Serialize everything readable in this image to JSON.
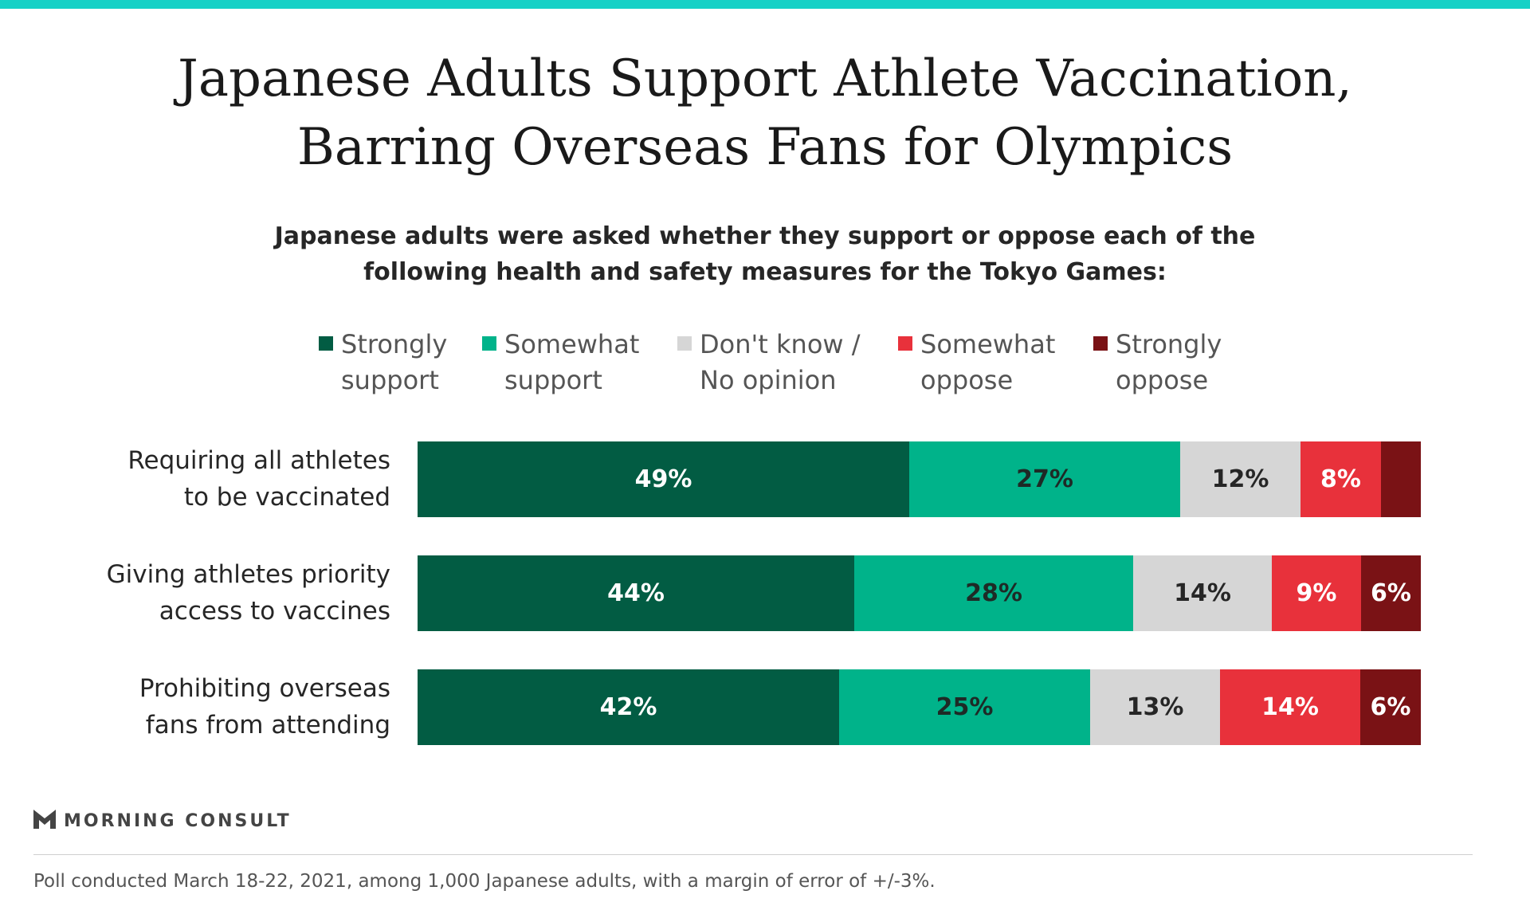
{
  "colors": {
    "accent_rule": "#17d1c6",
    "strongly_support": "#025c43",
    "somewhat_support": "#00b38a",
    "dont_know": "#d6d6d6",
    "somewhat_oppose": "#e8313b",
    "strongly_oppose": "#7a1215"
  },
  "chart_data": {
    "type": "bar",
    "orientation": "horizontal",
    "stacked": true,
    "title": "Japanese Adults Support Athlete Vaccination, Barring Overseas Fans for Olympics",
    "title_lines": [
      "Japanese Adults Support Athlete Vaccination,",
      "Barring Overseas Fans for Olympics"
    ],
    "subtitle": "Japanese adults were asked whether they support or oppose each of the following health and safety measures for the Tokyo Games:",
    "subtitle_lines": [
      "Japanese adults were asked whether they support or oppose each of the",
      "following health and safety measures for the Tokyo Games:"
    ],
    "legend_placement": "top",
    "grid": false,
    "xlim": [
      0,
      100
    ],
    "categories": [
      "Requiring all athletes to be vaccinated",
      "Giving athletes priority access to vaccines",
      "Prohibiting overseas fans from attending"
    ],
    "category_lines": [
      [
        "Requiring all athletes",
        "to be vaccinated"
      ],
      [
        "Giving athletes priority",
        "access to vaccines"
      ],
      [
        "Prohibiting overseas",
        "fans from attending"
      ]
    ],
    "series": [
      {
        "name": "Strongly support",
        "lines": [
          "Strongly",
          "support"
        ],
        "values": [
          49,
          44,
          42
        ],
        "labels": [
          "49%",
          "44%",
          "42%"
        ]
      },
      {
        "name": "Somewhat support",
        "lines": [
          "Somewhat",
          "support"
        ],
        "values": [
          27,
          28,
          25
        ],
        "labels": [
          "27%",
          "28%",
          "25%"
        ]
      },
      {
        "name": "Don't know / No opinion",
        "lines": [
          "Don't know /",
          "No opinion"
        ],
        "values": [
          12,
          14,
          13
        ],
        "labels": [
          "12%",
          "14%",
          "13%"
        ]
      },
      {
        "name": "Somewhat oppose",
        "lines": [
          "Somewhat",
          "oppose"
        ],
        "values": [
          8,
          9,
          14
        ],
        "labels": [
          "8%",
          "9%",
          "14%"
        ]
      },
      {
        "name": "Strongly oppose",
        "lines": [
          "Strongly",
          "oppose"
        ],
        "values": [
          4,
          6,
          6
        ],
        "labels": [
          "",
          "6%",
          "6%"
        ]
      }
    ]
  },
  "brand": {
    "name": "MORNING CONSULT"
  },
  "footnote": "Poll conducted March 18-22, 2021, among 1,000 Japanese adults, with a margin of error of +/-3%."
}
